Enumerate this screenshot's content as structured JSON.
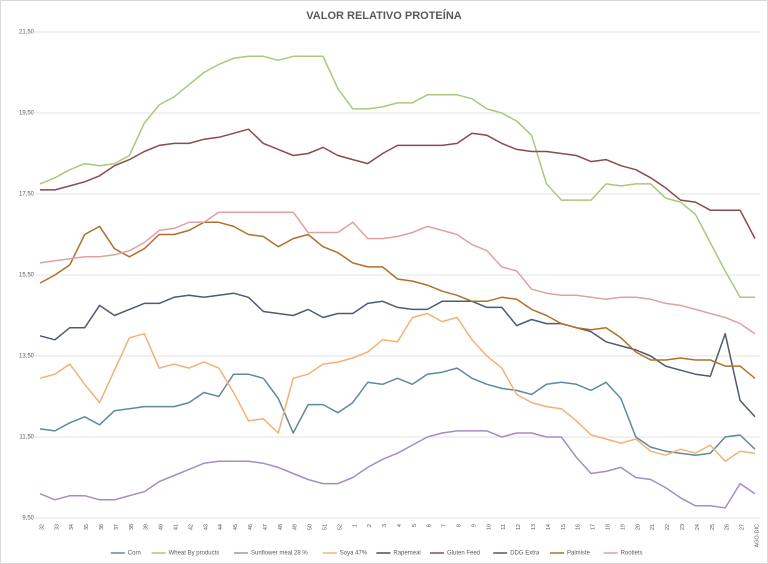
{
  "chart_data": {
    "type": "line",
    "title": "VALOR RELATIVO PROTEÍNA",
    "categories": [
      "32",
      "33",
      "34",
      "35",
      "36",
      "37",
      "38",
      "39",
      "40",
      "41",
      "42",
      "43",
      "44",
      "45",
      "46",
      "47",
      "48",
      "49",
      "50",
      "51",
      "52",
      "1",
      "2",
      "3",
      "4",
      "5",
      "6",
      "7",
      "8",
      "9",
      "10",
      "11",
      "12",
      "13",
      "14",
      "15",
      "16",
      "17",
      "18",
      "19",
      "20",
      "21",
      "22",
      "23",
      "24",
      "25",
      "26",
      "27",
      "AGO-DIC"
    ],
    "ylim": [
      9.5,
      21.5
    ],
    "yticks": [
      {
        "value": 9.5,
        "label": "9,50"
      },
      {
        "value": 11.5,
        "label": "11,50"
      },
      {
        "value": 13.5,
        "label": "13,50"
      },
      {
        "value": 15.5,
        "label": "15,50"
      },
      {
        "value": 17.5,
        "label": "17,50"
      },
      {
        "value": 19.5,
        "label": "19,50"
      },
      {
        "value": 21.5,
        "label": "21,50"
      }
    ],
    "grid": true,
    "legend": "bottom",
    "series": [
      {
        "name": "Corn",
        "color": "#5f8a9c",
        "values": [
          11.7,
          11.65,
          11.85,
          12.0,
          11.8,
          12.15,
          12.2,
          12.25,
          12.25,
          12.25,
          12.35,
          12.6,
          12.5,
          13.05,
          13.05,
          12.95,
          12.45,
          11.6,
          12.3,
          12.3,
          12.1,
          12.35,
          12.85,
          12.8,
          12.95,
          12.8,
          13.05,
          13.1,
          13.2,
          12.95,
          12.8,
          12.7,
          12.65,
          12.55,
          12.8,
          12.85,
          12.8,
          12.65,
          12.85,
          12.45,
          11.5,
          11.25,
          11.15,
          11.1,
          11.05,
          11.1,
          11.5,
          11.55,
          11.2
        ]
      },
      {
        "name": "Wheat By products",
        "color": "#a8c97c",
        "values": [
          17.75,
          17.9,
          18.1,
          18.25,
          18.2,
          18.25,
          18.45,
          19.25,
          19.7,
          19.9,
          20.2,
          20.5,
          20.7,
          20.85,
          20.9,
          20.9,
          20.8,
          20.9,
          20.9,
          20.9,
          20.1,
          19.6,
          19.6,
          19.65,
          19.75,
          19.75,
          19.95,
          19.95,
          19.95,
          19.85,
          19.6,
          19.5,
          19.3,
          18.95,
          17.75,
          17.35,
          17.35,
          17.35,
          17.75,
          17.7,
          17.75,
          17.75,
          17.4,
          17.3,
          17.0,
          16.3,
          15.6,
          14.95,
          14.95
        ]
      },
      {
        "name": "Sunflower meal 28 %",
        "color": "#a58cc6",
        "values": [
          10.1,
          9.95,
          10.05,
          10.05,
          9.95,
          9.95,
          10.05,
          10.15,
          10.4,
          10.55,
          10.7,
          10.85,
          10.9,
          10.9,
          10.9,
          10.85,
          10.75,
          10.6,
          10.45,
          10.35,
          10.35,
          10.5,
          10.75,
          10.95,
          11.1,
          11.3,
          11.5,
          11.6,
          11.65,
          11.65,
          11.65,
          11.5,
          11.6,
          11.6,
          11.5,
          11.5,
          11.0,
          10.6,
          10.65,
          10.75,
          10.5,
          10.45,
          10.25,
          10.0,
          9.8,
          9.8,
          9.75,
          10.35,
          10.1
        ]
      },
      {
        "name": "Soya 47%",
        "color": "#f2b277",
        "values": [
          12.95,
          13.05,
          13.3,
          12.8,
          12.35,
          13.15,
          13.95,
          14.05,
          13.2,
          13.3,
          13.2,
          13.35,
          13.2,
          12.6,
          11.9,
          11.95,
          11.6,
          12.95,
          13.05,
          13.3,
          13.35,
          13.45,
          13.6,
          13.9,
          13.85,
          14.45,
          14.55,
          14.35,
          14.45,
          13.9,
          13.5,
          13.2,
          12.55,
          12.35,
          12.25,
          12.2,
          11.9,
          11.55,
          11.45,
          11.35,
          11.45,
          11.15,
          11.05,
          11.2,
          11.1,
          11.3,
          10.9,
          11.15,
          11.1
        ]
      },
      {
        "name": "Rapemeal",
        "color": "#3b4d77",
        "values": [
          null,
          null,
          null,
          null,
          null,
          null,
          null,
          null,
          null,
          null,
          null,
          null,
          null,
          null,
          null,
          null,
          null,
          null,
          null,
          null,
          null,
          null,
          null,
          null,
          null,
          null,
          null,
          null,
          null,
          null,
          null,
          null,
          null,
          null,
          null,
          null,
          null,
          null,
          null,
          null,
          null,
          null,
          null,
          null,
          null,
          null,
          null,
          null,
          null
        ]
      },
      {
        "name": "Gluten Feed",
        "color": "#8a4a4f",
        "values": [
          17.6,
          17.6,
          17.7,
          17.8,
          17.95,
          18.2,
          18.35,
          18.55,
          18.7,
          18.75,
          18.75,
          18.85,
          18.9,
          19.0,
          19.1,
          18.75,
          18.6,
          18.45,
          18.5,
          18.65,
          18.45,
          18.35,
          18.25,
          18.5,
          18.7,
          18.7,
          18.7,
          18.7,
          18.75,
          19.0,
          18.95,
          18.75,
          18.6,
          18.55,
          18.55,
          18.5,
          18.45,
          18.3,
          18.35,
          18.2,
          18.1,
          17.9,
          17.65,
          17.35,
          17.3,
          17.1,
          17.1,
          17.1,
          16.4
        ]
      },
      {
        "name": "DDG Extra",
        "color": "#4f5a73",
        "values": [
          14.0,
          13.9,
          14.2,
          14.2,
          14.75,
          14.5,
          14.65,
          14.8,
          14.8,
          14.95,
          15.0,
          14.95,
          15.0,
          15.05,
          14.95,
          14.6,
          14.55,
          14.5,
          14.65,
          14.45,
          14.55,
          14.55,
          14.8,
          14.85,
          14.7,
          14.65,
          14.65,
          14.85,
          14.85,
          14.85,
          14.7,
          14.7,
          14.25,
          14.4,
          14.3,
          14.3,
          14.2,
          14.1,
          13.85,
          13.75,
          13.65,
          13.5,
          13.25,
          13.15,
          13.05,
          13.0,
          14.05,
          12.4,
          12.0
        ]
      },
      {
        "name": "Palmiste",
        "color": "#b0702a",
        "values": [
          15.3,
          15.5,
          15.75,
          16.5,
          16.7,
          16.15,
          15.95,
          16.15,
          16.5,
          16.5,
          16.6,
          16.8,
          16.8,
          16.7,
          16.5,
          16.45,
          16.2,
          16.4,
          16.5,
          16.2,
          16.05,
          15.8,
          15.7,
          15.7,
          15.4,
          15.35,
          15.25,
          15.1,
          15.0,
          14.85,
          14.85,
          14.95,
          14.9,
          14.65,
          14.5,
          14.3,
          14.2,
          14.15,
          14.2,
          13.95,
          13.6,
          13.4,
          13.4,
          13.45,
          13.4,
          13.4,
          13.25,
          13.25,
          12.95
        ]
      },
      {
        "name": "Rootlets",
        "color": "#e0a1a3",
        "values": [
          15.8,
          15.85,
          15.9,
          15.95,
          15.95,
          16.0,
          16.1,
          16.3,
          16.6,
          16.65,
          16.8,
          16.8,
          17.05,
          17.05,
          17.05,
          17.05,
          17.05,
          17.05,
          16.55,
          16.55,
          16.55,
          16.8,
          16.4,
          16.4,
          16.45,
          16.55,
          16.7,
          16.6,
          16.5,
          16.25,
          16.1,
          15.7,
          15.6,
          15.15,
          15.05,
          15.0,
          15.0,
          14.95,
          14.9,
          14.95,
          14.95,
          14.9,
          14.8,
          14.75,
          14.65,
          14.55,
          14.45,
          14.3,
          14.05
        ]
      }
    ]
  }
}
